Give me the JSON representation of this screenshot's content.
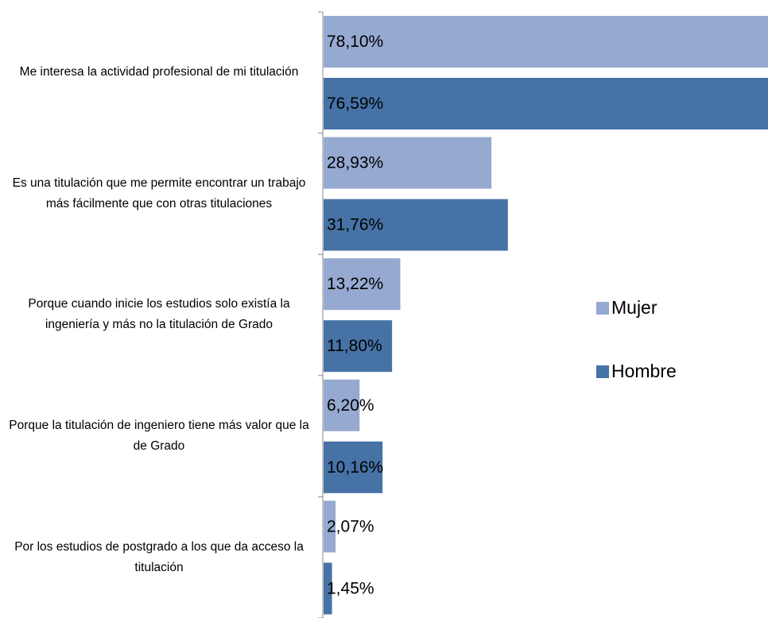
{
  "chart_data": {
    "type": "bar",
    "orientation": "horizontal",
    "categories": [
      "Me interesa la actividad profesional de mi titulación",
      "Es una titulación que me permite encontrar un trabajo más fácilmente que con otras titulaciones",
      "Porque cuando inicie los estudios solo existía la ingeniería y más no la titulación de Grado",
      "Porque la titulación de ingeniero tiene más valor que la de Grado",
      "Por los estudios de postgrado a los que da acceso la titulación"
    ],
    "series": [
      {
        "name": "Mujer",
        "color": "#95a9d1",
        "values": [
          78.1,
          28.93,
          13.22,
          6.2,
          2.07
        ],
        "value_labels": [
          "78,10%",
          "28,93%",
          "13,22%",
          "6,20%",
          "2,07%"
        ]
      },
      {
        "name": "Hombre",
        "color": "#4672a6",
        "values": [
          76.59,
          31.76,
          11.8,
          10.16,
          1.45
        ],
        "value_labels": [
          "76,59%",
          "31,76%",
          "11,80%",
          "10,16%",
          "1,45%"
        ]
      }
    ],
    "legend": "right"
  }
}
